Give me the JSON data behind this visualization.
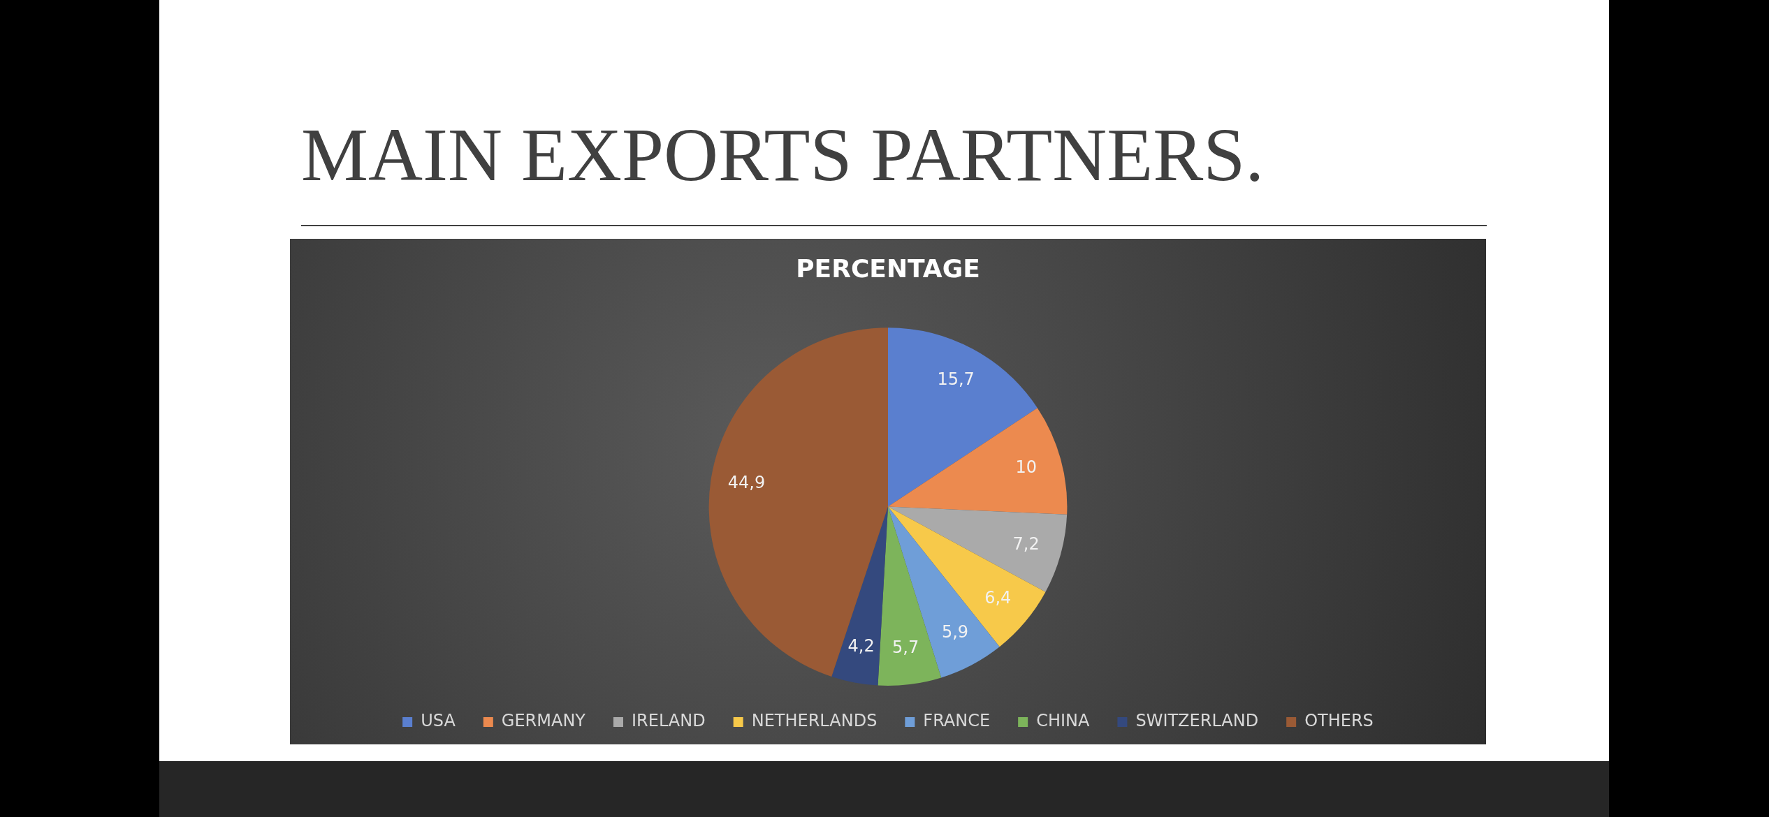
{
  "chart_data": {
    "type": "pie",
    "title": "MAIN EXPORTS PARTNERS.",
    "subtitle": "PERCENTAGE",
    "categories": [
      "USA",
      "GERMANY",
      "IRELAND",
      "NETHERLANDS",
      "FRANCE",
      "CHINA",
      "SWITZERLAND",
      "OTHERS"
    ],
    "values": [
      15.7,
      10,
      7.2,
      6.4,
      5.9,
      5.7,
      4.2,
      44.9
    ],
    "value_labels": [
      "15,7",
      "10",
      "7,2",
      "6,4",
      "5,9",
      "5,7",
      "4,2",
      "44,9"
    ],
    "colors": [
      "#5a7fcf",
      "#ec8a4f",
      "#aaaaaa",
      "#f7c94a",
      "#6f9ed8",
      "#7db45b",
      "#34497e",
      "#9a5a35"
    ],
    "legend": "bottom"
  }
}
